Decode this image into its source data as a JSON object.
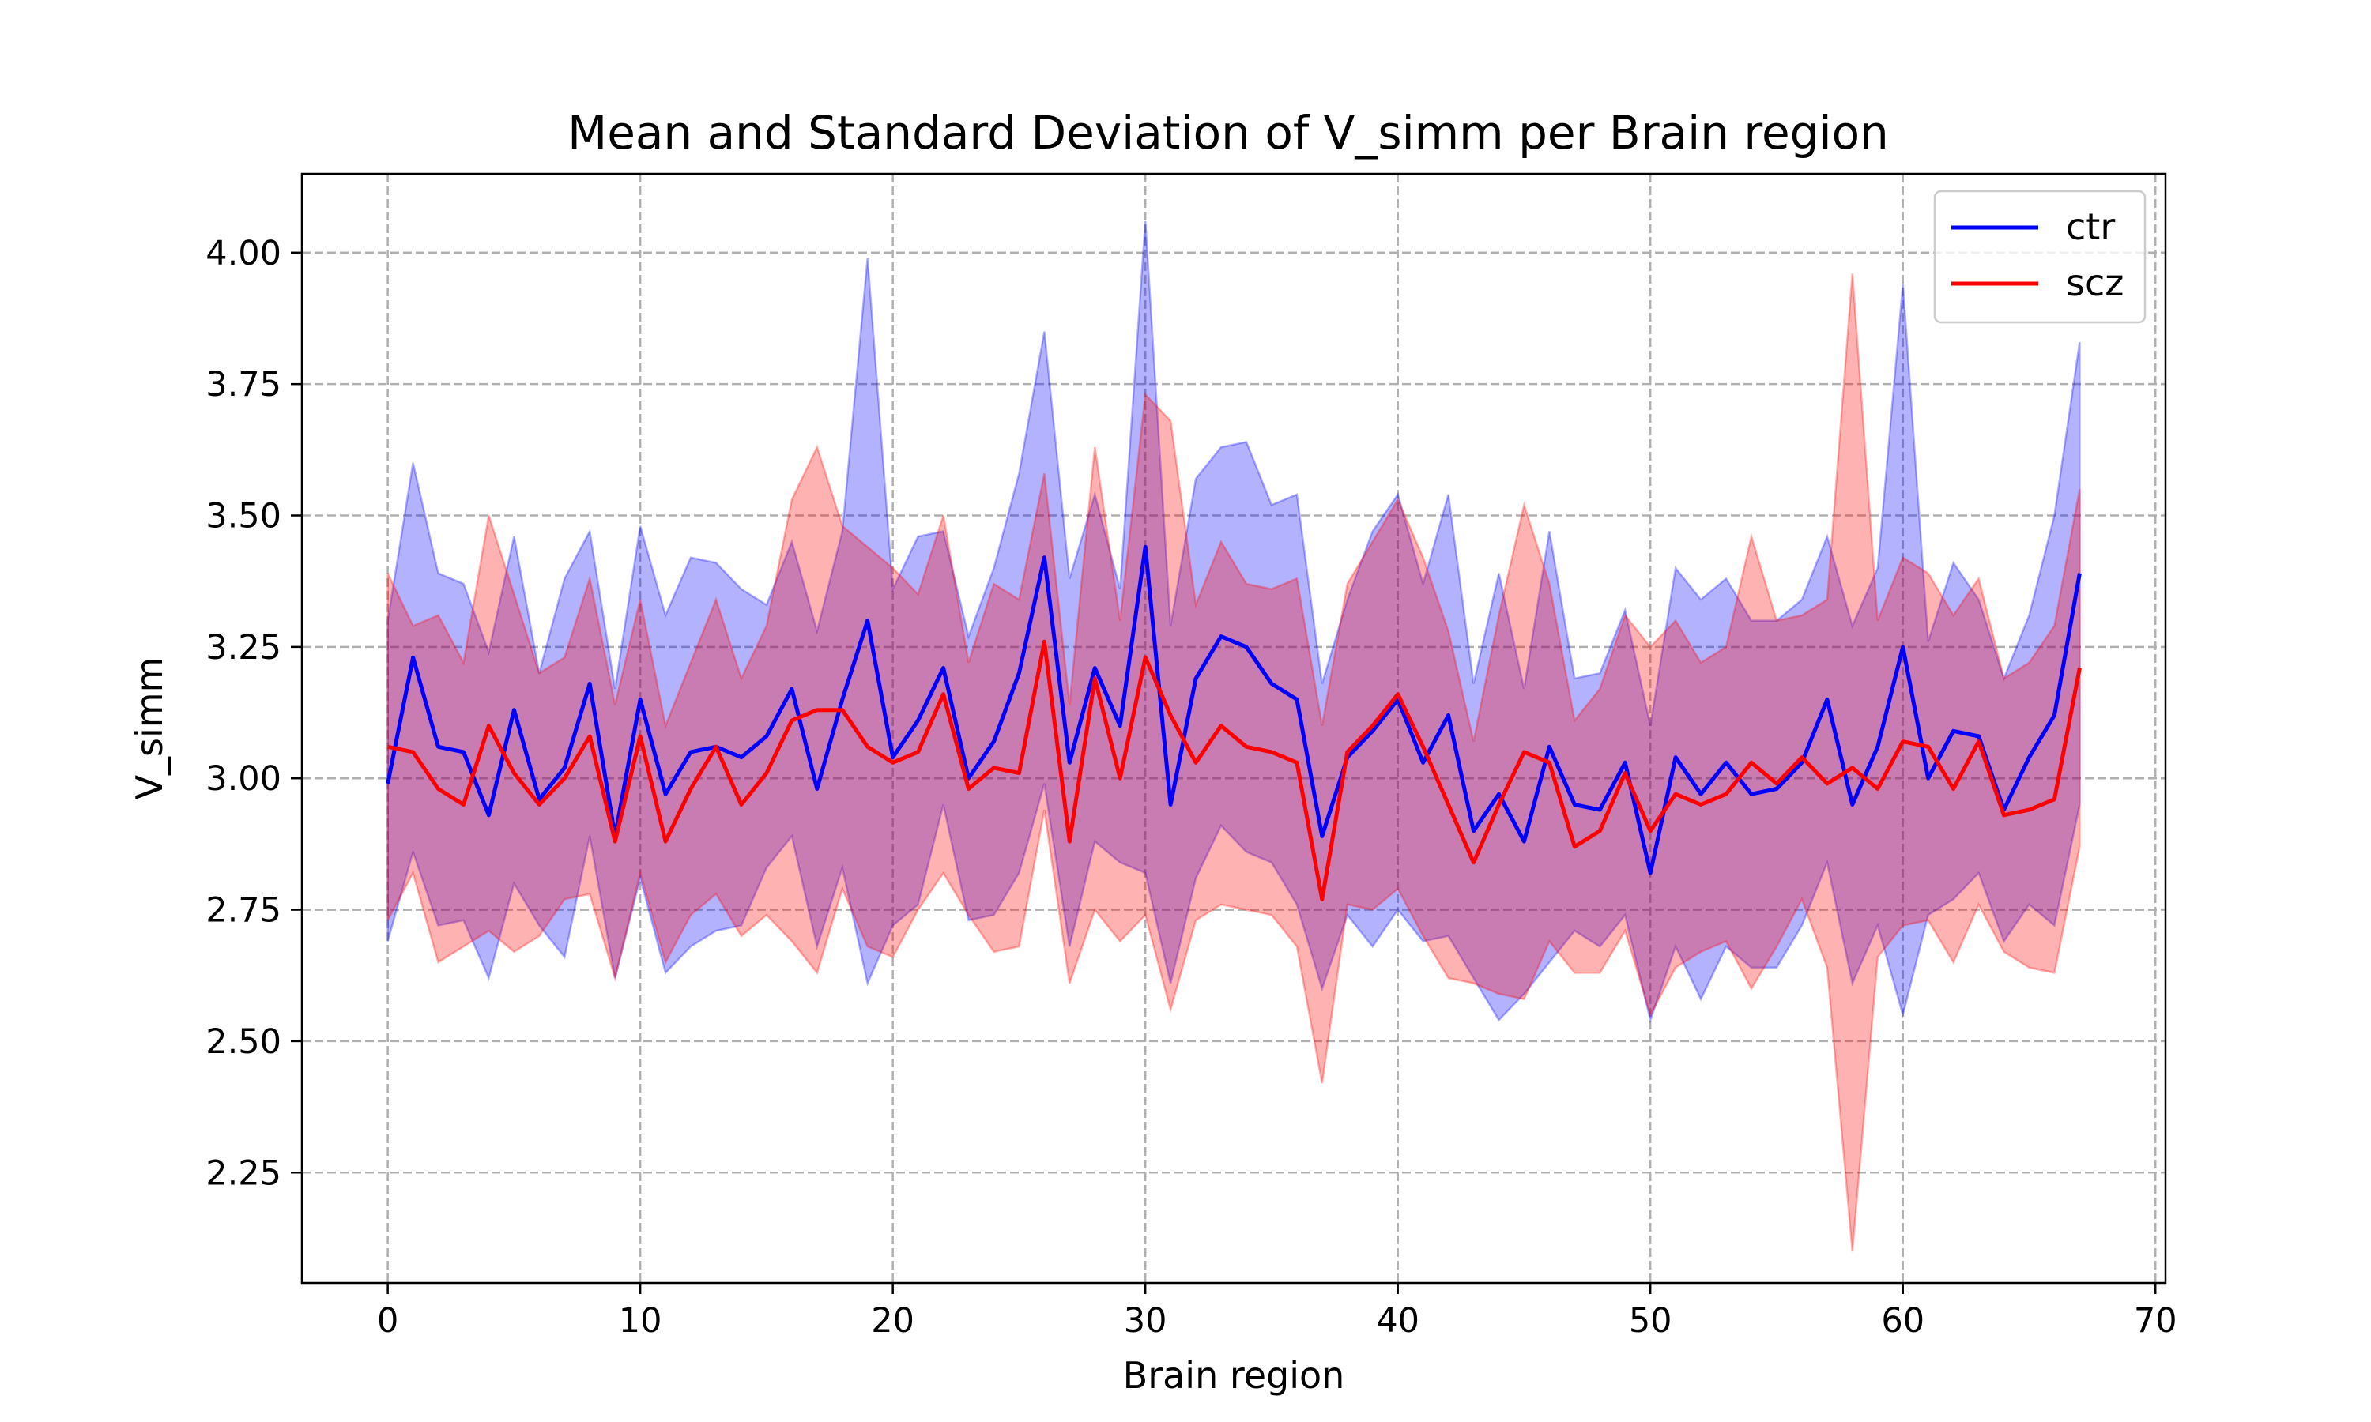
{
  "chart_data": {
    "type": "line",
    "title": "Mean and Standard Deviation of V_simm per Brain region",
    "xlabel": "Brain region",
    "ylabel": "V_simm",
    "xlim": [
      -3.4,
      70.4
    ],
    "ylim": [
      2.04,
      4.15
    ],
    "x_ticks": [
      0,
      10,
      20,
      30,
      40,
      50,
      60,
      70
    ],
    "y_ticks": [
      2.25,
      2.5,
      2.75,
      3.0,
      3.25,
      3.5,
      3.75,
      4.0
    ],
    "x_tick_labels": [
      "0",
      "10",
      "20",
      "30",
      "40",
      "50",
      "60",
      "70"
    ],
    "y_tick_labels": [
      "2.25",
      "2.50",
      "2.75",
      "3.00",
      "3.25",
      "3.50",
      "3.75",
      "4.00"
    ],
    "grid": true,
    "legend_position": "top-right",
    "x": [
      0,
      1,
      2,
      3,
      4,
      5,
      6,
      7,
      8,
      9,
      10,
      11,
      12,
      13,
      14,
      15,
      16,
      17,
      18,
      19,
      20,
      21,
      22,
      23,
      24,
      25,
      26,
      27,
      28,
      29,
      30,
      31,
      32,
      33,
      34,
      35,
      36,
      37,
      38,
      39,
      40,
      41,
      42,
      43,
      44,
      45,
      46,
      47,
      48,
      49,
      50,
      51,
      52,
      53,
      54,
      55,
      56,
      57,
      58,
      59,
      60,
      61,
      62,
      63,
      64,
      65,
      66,
      67
    ],
    "series": [
      {
        "name": "ctr",
        "color": "#0000ff",
        "mean": [
          2.99,
          3.23,
          3.06,
          3.05,
          2.93,
          3.13,
          2.96,
          3.02,
          3.18,
          2.89,
          3.15,
          2.97,
          3.05,
          3.06,
          3.04,
          3.08,
          3.17,
          2.98,
          3.15,
          3.3,
          3.04,
          3.11,
          3.21,
          3.0,
          3.07,
          3.2,
          3.42,
          3.03,
          3.21,
          3.1,
          3.44,
          2.95,
          3.19,
          3.27,
          3.25,
          3.18,
          3.15,
          2.89,
          3.04,
          3.09,
          3.15,
          3.03,
          3.12,
          2.9,
          2.97,
          2.88,
          3.06,
          2.95,
          2.94,
          3.03,
          2.82,
          3.04,
          2.97,
          3.03,
          2.97,
          2.98,
          3.03,
          3.15,
          2.95,
          3.06,
          3.25,
          3.0,
          3.09,
          3.08,
          2.94,
          3.04,
          3.12,
          3.39
        ],
        "upper": [
          3.3,
          3.6,
          3.39,
          3.37,
          3.24,
          3.46,
          3.2,
          3.38,
          3.47,
          3.17,
          3.48,
          3.31,
          3.42,
          3.41,
          3.36,
          3.33,
          3.45,
          3.28,
          3.47,
          3.99,
          3.36,
          3.46,
          3.47,
          3.27,
          3.4,
          3.58,
          3.85,
          3.38,
          3.54,
          3.36,
          4.06,
          3.29,
          3.57,
          3.63,
          3.64,
          3.52,
          3.54,
          3.18,
          3.34,
          3.47,
          3.54,
          3.37,
          3.54,
          3.18,
          3.39,
          3.17,
          3.47,
          3.19,
          3.2,
          3.32,
          3.1,
          3.4,
          3.34,
          3.38,
          3.3,
          3.3,
          3.34,
          3.46,
          3.29,
          3.4,
          3.94,
          3.26,
          3.41,
          3.34,
          3.19,
          3.31,
          3.5,
          3.83
        ],
        "lower": [
          2.69,
          2.86,
          2.72,
          2.73,
          2.62,
          2.8,
          2.72,
          2.66,
          2.89,
          2.62,
          2.81,
          2.63,
          2.68,
          2.71,
          2.72,
          2.83,
          2.89,
          2.68,
          2.83,
          2.61,
          2.72,
          2.76,
          2.95,
          2.73,
          2.74,
          2.82,
          2.99,
          2.68,
          2.88,
          2.84,
          2.82,
          2.61,
          2.81,
          2.91,
          2.86,
          2.84,
          2.76,
          2.6,
          2.74,
          2.68,
          2.75,
          2.69,
          2.7,
          2.62,
          2.54,
          2.59,
          2.65,
          2.71,
          2.68,
          2.74,
          2.54,
          2.68,
          2.58,
          2.68,
          2.64,
          2.64,
          2.72,
          2.84,
          2.61,
          2.72,
          2.55,
          2.74,
          2.77,
          2.82,
          2.69,
          2.76,
          2.72,
          2.95
        ]
      },
      {
        "name": "scz",
        "color": "#ff0000",
        "mean": [
          3.06,
          3.05,
          2.98,
          2.95,
          3.1,
          3.01,
          2.95,
          3.0,
          3.08,
          2.88,
          3.08,
          2.88,
          2.98,
          3.06,
          2.95,
          3.01,
          3.11,
          3.13,
          3.13,
          3.06,
          3.03,
          3.05,
          3.16,
          2.98,
          3.02,
          3.01,
          3.26,
          2.88,
          3.19,
          3.0,
          3.23,
          3.12,
          3.03,
          3.1,
          3.06,
          3.05,
          3.03,
          2.77,
          3.05,
          3.1,
          3.16,
          3.06,
          2.95,
          2.84,
          2.95,
          3.05,
          3.03,
          2.87,
          2.9,
          3.01,
          2.9,
          2.97,
          2.95,
          2.97,
          3.03,
          2.99,
          3.04,
          2.99,
          3.02,
          2.98,
          3.07,
          3.06,
          2.98,
          3.07,
          2.93,
          2.94,
          2.96,
          3.21
        ],
        "upper": [
          3.39,
          3.29,
          3.31,
          3.22,
          3.5,
          3.35,
          3.2,
          3.23,
          3.38,
          3.14,
          3.34,
          3.1,
          3.22,
          3.34,
          3.19,
          3.29,
          3.53,
          3.63,
          3.48,
          3.44,
          3.4,
          3.35,
          3.5,
          3.22,
          3.37,
          3.34,
          3.58,
          3.14,
          3.63,
          3.3,
          3.73,
          3.68,
          3.33,
          3.45,
          3.37,
          3.36,
          3.38,
          3.1,
          3.37,
          3.45,
          3.53,
          3.42,
          3.28,
          3.07,
          3.31,
          3.52,
          3.37,
          3.11,
          3.17,
          3.31,
          3.25,
          3.3,
          3.22,
          3.25,
          3.46,
          3.3,
          3.31,
          3.34,
          3.96,
          3.3,
          3.42,
          3.39,
          3.31,
          3.38,
          3.19,
          3.22,
          3.29,
          3.55
        ],
        "lower": [
          2.73,
          2.82,
          2.65,
          2.68,
          2.71,
          2.67,
          2.7,
          2.77,
          2.78,
          2.62,
          2.82,
          2.65,
          2.74,
          2.78,
          2.7,
          2.74,
          2.69,
          2.63,
          2.79,
          2.68,
          2.66,
          2.75,
          2.82,
          2.74,
          2.67,
          2.68,
          2.94,
          2.61,
          2.75,
          2.69,
          2.74,
          2.56,
          2.73,
          2.76,
          2.75,
          2.74,
          2.68,
          2.42,
          2.76,
          2.75,
          2.79,
          2.7,
          2.62,
          2.61,
          2.59,
          2.58,
          2.69,
          2.63,
          2.63,
          2.71,
          2.55,
          2.64,
          2.67,
          2.69,
          2.6,
          2.68,
          2.77,
          2.64,
          2.1,
          2.66,
          2.72,
          2.73,
          2.65,
          2.76,
          2.67,
          2.64,
          2.63,
          2.87
        ]
      }
    ]
  }
}
